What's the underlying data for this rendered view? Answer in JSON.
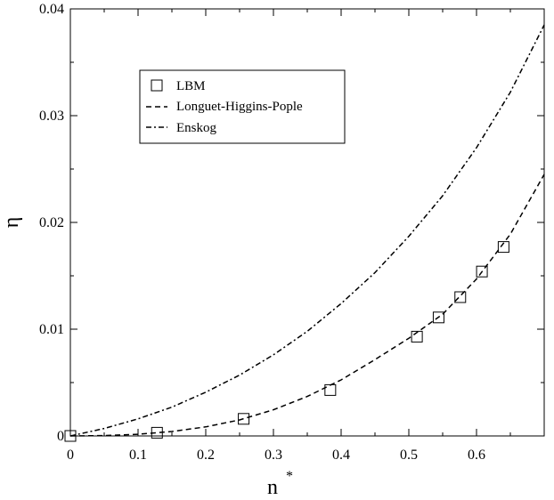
{
  "chart_data": {
    "type": "scatter",
    "xlabel": "n",
    "xlabel_superscript": "*",
    "ylabel": "η",
    "xlim": [
      0,
      0.7
    ],
    "ylim": [
      0,
      0.04
    ],
    "xticks": [
      0,
      0.1,
      0.2,
      0.3,
      0.4,
      0.5,
      0.6
    ],
    "xtick_labels": [
      "0",
      "0.1",
      "0.2",
      "0.3",
      "0.4",
      "0.5",
      "0.6"
    ],
    "yticks": [
      0,
      0.01,
      0.02,
      0.03,
      0.04
    ],
    "ytick_labels": [
      "0",
      "0.01",
      "0.02",
      "0.03",
      "0.04"
    ],
    "grid": false,
    "legend_position": "upper-left",
    "series": [
      {
        "name": "LBM",
        "style": "square-markers",
        "x": [
          0,
          0.128,
          0.256,
          0.384,
          0.512,
          0.544,
          0.576,
          0.608,
          0.64
        ],
        "y": [
          0,
          0.0003,
          0.0016,
          0.0043,
          0.0093,
          0.0111,
          0.013,
          0.0154,
          0.0177
        ]
      },
      {
        "name": "Longuet-Higgins-Pople",
        "style": "dashed",
        "x": [
          0,
          0.05,
          0.1,
          0.15,
          0.2,
          0.25,
          0.3,
          0.35,
          0.4,
          0.45,
          0.5,
          0.55,
          0.6,
          0.65,
          0.7
        ],
        "y": [
          0,
          3e-05,
          0.00016,
          0.00042,
          0.00085,
          0.0015,
          0.00245,
          0.0037,
          0.00525,
          0.00715,
          0.00915,
          0.0114,
          0.0147,
          0.0189,
          0.0245
        ]
      },
      {
        "name": "Enskog",
        "style": "dash-dot",
        "x": [
          0,
          0.05,
          0.1,
          0.15,
          0.2,
          0.25,
          0.3,
          0.35,
          0.4,
          0.45,
          0.5,
          0.55,
          0.6,
          0.65,
          0.7
        ],
        "y": [
          0,
          0.0007,
          0.0016,
          0.0027,
          0.0041,
          0.0057,
          0.0076,
          0.0098,
          0.0124,
          0.0153,
          0.0187,
          0.0225,
          0.027,
          0.0322,
          0.0385
        ]
      }
    ]
  }
}
